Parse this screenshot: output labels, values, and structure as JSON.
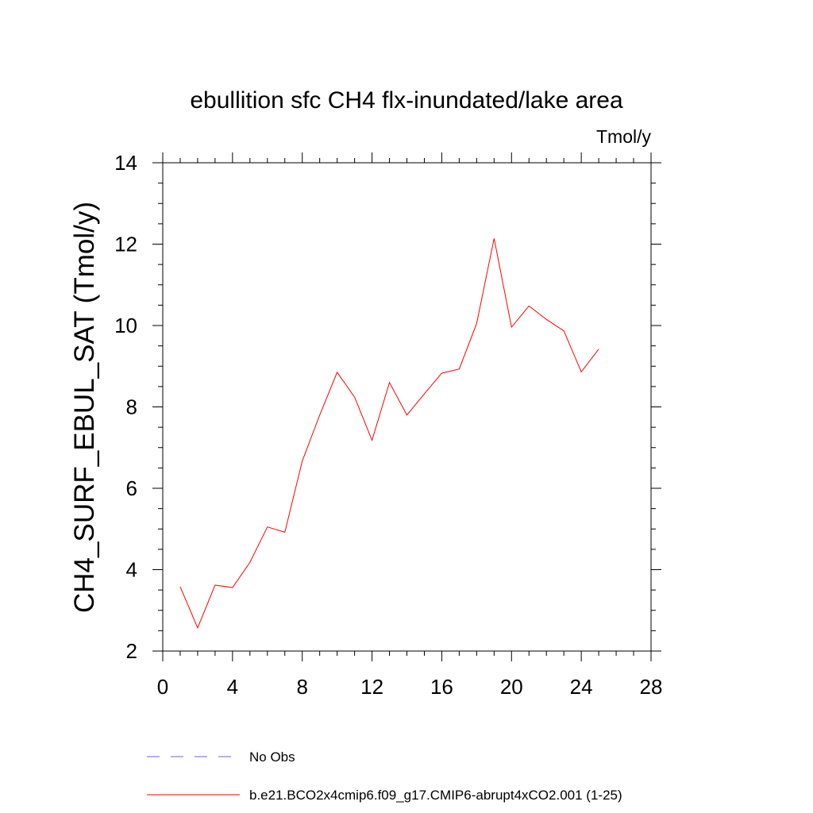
{
  "chart_data": {
    "type": "line",
    "title": "ebullition sfc CH4 flx-inundated/lake area",
    "units_label": "Tmol/y",
    "xlabel": "",
    "ylabel": "CH4_SURF_EBUL_SAT  (Tmol/y)",
    "xlim": [
      0,
      28
    ],
    "ylim": [
      2,
      14
    ],
    "xticks": [
      0,
      4,
      8,
      12,
      16,
      20,
      24,
      28
    ],
    "yticks": [
      2,
      4,
      6,
      8,
      10,
      12,
      14
    ],
    "grid": false,
    "legend_position": "bottom-left",
    "series": [
      {
        "name": "No Obs",
        "color": "#6a6acd",
        "style": "dashed",
        "x": [],
        "y": []
      },
      {
        "name": "b.e21.BCO2x4cmip6.f09_g17.CMIP6-abrupt4xCO2.001 (1-25)",
        "color": "#ff0000",
        "style": "solid",
        "x": [
          1,
          2,
          3,
          4,
          5,
          6,
          7,
          8,
          9,
          10,
          11,
          12,
          13,
          14,
          15,
          16,
          17,
          18,
          19,
          20,
          21,
          22,
          23,
          24,
          25
        ],
        "y": [
          3.58,
          2.57,
          3.62,
          3.56,
          4.18,
          5.05,
          4.92,
          6.67,
          7.8,
          8.85,
          8.24,
          7.18,
          8.6,
          7.8,
          8.32,
          8.83,
          8.93,
          10.05,
          12.14,
          9.96,
          10.48,
          10.15,
          9.87,
          8.86,
          9.42
        ]
      }
    ]
  }
}
